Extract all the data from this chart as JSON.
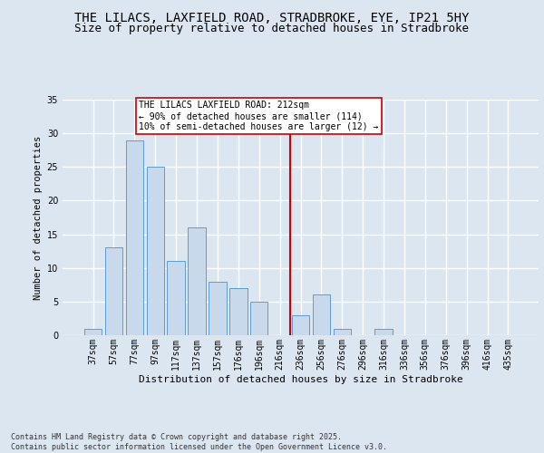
{
  "title": "THE LILACS, LAXFIELD ROAD, STRADBROKE, EYE, IP21 5HY",
  "subtitle": "Size of property relative to detached houses in Stradbroke",
  "xlabel": "Distribution of detached houses by size in Stradbroke",
  "ylabel": "Number of detached properties",
  "categories": [
    "37sqm",
    "57sqm",
    "77sqm",
    "97sqm",
    "117sqm",
    "137sqm",
    "157sqm",
    "176sqm",
    "196sqm",
    "216sqm",
    "236sqm",
    "256sqm",
    "276sqm",
    "296sqm",
    "316sqm",
    "336sqm",
    "356sqm",
    "376sqm",
    "396sqm",
    "416sqm",
    "435sqm"
  ],
  "values": [
    1,
    13,
    29,
    25,
    11,
    16,
    8,
    7,
    5,
    0,
    3,
    6,
    1,
    0,
    1,
    0,
    0,
    0,
    0,
    0,
    0
  ],
  "bar_color": "#c9d9ec",
  "bar_edge_color": "#5b9bd5",
  "background_color": "#dce6f1",
  "grid_color": "#ffffff",
  "fig_background": "#dce6f1",
  "red_line_x": 9.5,
  "red_line_color": "#cc0000",
  "annotation_text": "THE LILACS LAXFIELD ROAD: 212sqm\n← 90% of detached houses are smaller (114)\n10% of semi-detached houses are larger (12) →",
  "annotation_box_facecolor": "#ffffff",
  "annotation_box_edgecolor": "#cc0000",
  "ylim": [
    0,
    35
  ],
  "yticks": [
    0,
    5,
    10,
    15,
    20,
    25,
    30,
    35
  ],
  "footer_text": "Contains HM Land Registry data © Crown copyright and database right 2025.\nContains public sector information licensed under the Open Government Licence v3.0.",
  "title_fontsize": 10,
  "subtitle_fontsize": 9,
  "annotation_fontsize": 7,
  "footer_fontsize": 6,
  "ylabel_fontsize": 7.5,
  "xlabel_fontsize": 8,
  "tick_fontsize": 7
}
